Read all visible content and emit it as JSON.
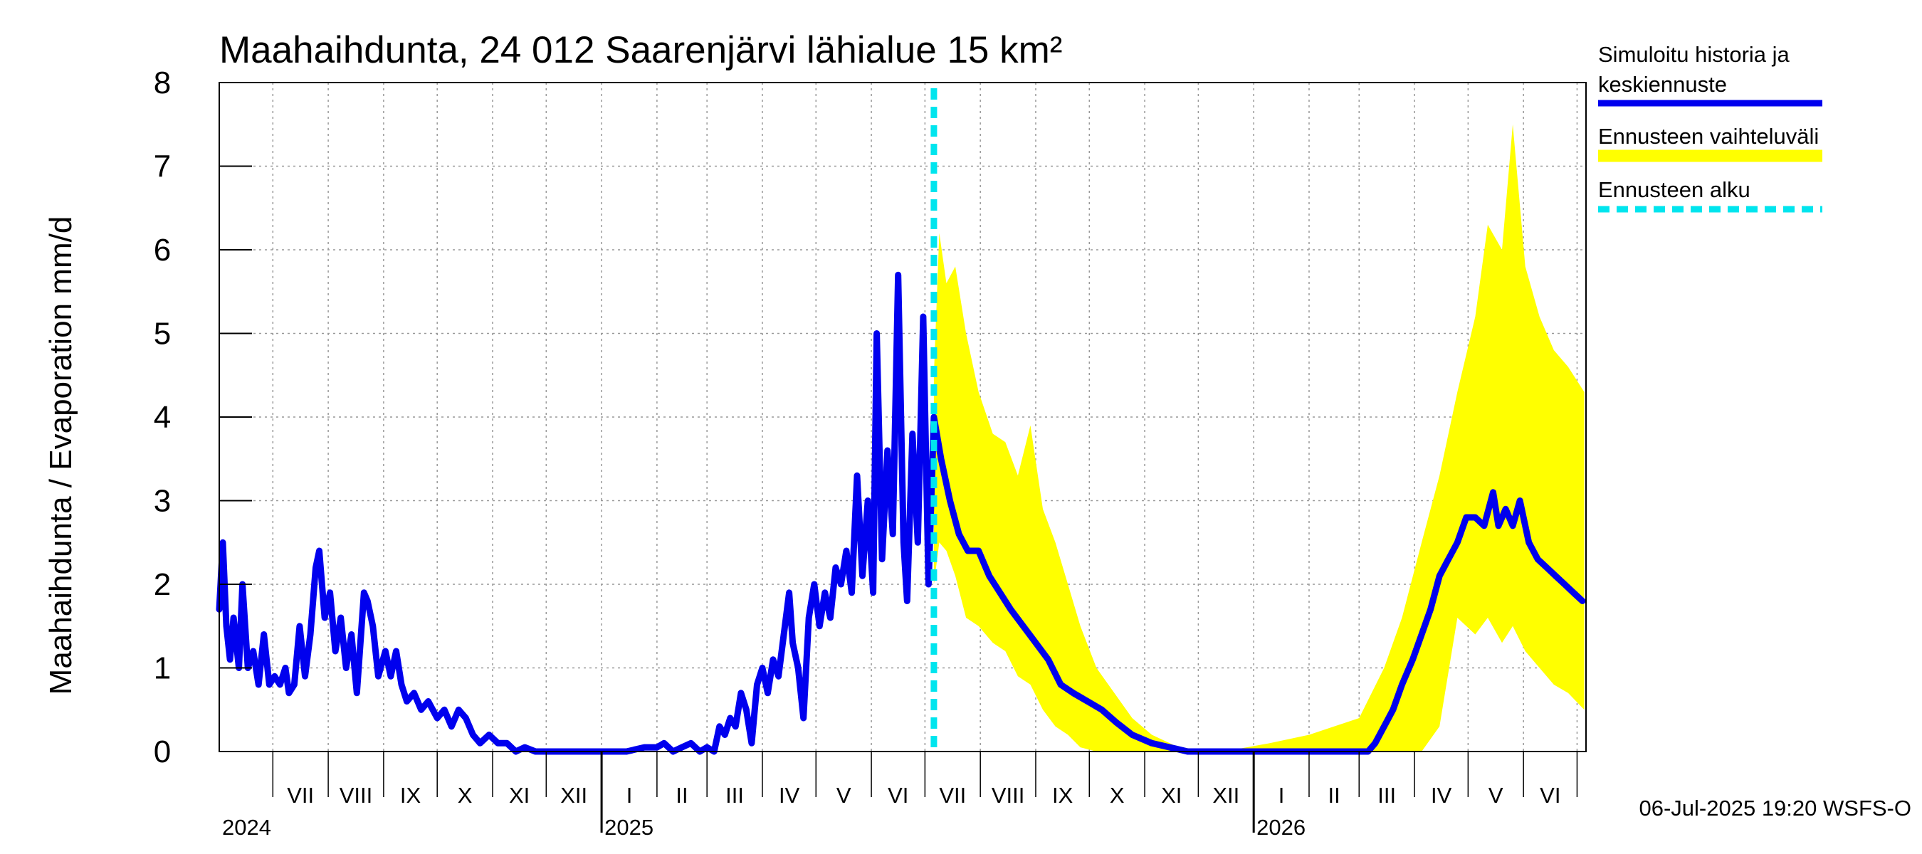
{
  "chart_data": {
    "type": "line",
    "title": "Maahaihdunta, 24 012 Saarenjärvi lähialue 15 km²",
    "ylabel": "Maahaihdunta / Evaporation   mm/d",
    "ylim": [
      0,
      8
    ],
    "yticks": [
      "0",
      "1",
      "2",
      "3",
      "4",
      "5",
      "6",
      "7",
      "8"
    ],
    "xlim": [
      "2024-06-01",
      "2026-07-06"
    ],
    "grid": true,
    "legend_position": "top-right outside",
    "months": [
      "VII",
      "VIII",
      "IX",
      "X",
      "XI",
      "XII",
      "I",
      "II",
      "III",
      "IV",
      "V",
      "VI",
      "VII",
      "VIII",
      "IX",
      "X",
      "XI",
      "XII",
      "I",
      "II",
      "III",
      "IV",
      "V",
      "VI"
    ],
    "years": [
      {
        "label": "2024",
        "date": "2024-07-01"
      },
      {
        "label": "2025",
        "date": "2025-01-01"
      },
      {
        "label": "2026",
        "date": "2026-01-01"
      }
    ],
    "forecast_start": "2025-07-06",
    "series": [
      {
        "name": "Simuloitu historia ja keskiennuste",
        "color": "#0000ee",
        "points": [
          [
            "2024-06-01",
            1.7
          ],
          [
            "2024-06-03",
            2.5
          ],
          [
            "2024-06-05",
            1.5
          ],
          [
            "2024-06-07",
            1.1
          ],
          [
            "2024-06-09",
            1.6
          ],
          [
            "2024-06-12",
            1.0
          ],
          [
            "2024-06-14",
            2.0
          ],
          [
            "2024-06-17",
            1.0
          ],
          [
            "2024-06-20",
            1.2
          ],
          [
            "2024-06-23",
            0.8
          ],
          [
            "2024-06-26",
            1.4
          ],
          [
            "2024-06-29",
            0.8
          ],
          [
            "2024-07-02",
            0.9
          ],
          [
            "2024-07-05",
            0.8
          ],
          [
            "2024-07-08",
            1.0
          ],
          [
            "2024-07-10",
            0.7
          ],
          [
            "2024-07-13",
            0.8
          ],
          [
            "2024-07-16",
            1.5
          ],
          [
            "2024-07-19",
            0.9
          ],
          [
            "2024-07-22",
            1.4
          ],
          [
            "2024-07-25",
            2.2
          ],
          [
            "2024-07-27",
            2.4
          ],
          [
            "2024-07-30",
            1.6
          ],
          [
            "2024-08-02",
            1.9
          ],
          [
            "2024-08-05",
            1.2
          ],
          [
            "2024-08-08",
            1.6
          ],
          [
            "2024-08-11",
            1.0
          ],
          [
            "2024-08-14",
            1.4
          ],
          [
            "2024-08-17",
            0.7
          ],
          [
            "2024-08-21",
            1.9
          ],
          [
            "2024-08-23",
            1.8
          ],
          [
            "2024-08-26",
            1.5
          ],
          [
            "2024-08-29",
            0.9
          ],
          [
            "2024-09-02",
            1.2
          ],
          [
            "2024-09-05",
            0.9
          ],
          [
            "2024-09-08",
            1.2
          ],
          [
            "2024-09-11",
            0.8
          ],
          [
            "2024-09-14",
            0.6
          ],
          [
            "2024-09-18",
            0.7
          ],
          [
            "2024-09-22",
            0.5
          ],
          [
            "2024-09-26",
            0.6
          ],
          [
            "2024-10-01",
            0.4
          ],
          [
            "2024-10-05",
            0.5
          ],
          [
            "2024-10-09",
            0.3
          ],
          [
            "2024-10-13",
            0.5
          ],
          [
            "2024-10-17",
            0.4
          ],
          [
            "2024-10-21",
            0.2
          ],
          [
            "2024-10-25",
            0.1
          ],
          [
            "2024-10-30",
            0.2
          ],
          [
            "2024-11-04",
            0.1
          ],
          [
            "2024-11-09",
            0.1
          ],
          [
            "2024-11-14",
            0.0
          ],
          [
            "2024-11-19",
            0.05
          ],
          [
            "2024-11-25",
            0.0
          ],
          [
            "2024-12-10",
            0.0
          ],
          [
            "2024-12-31",
            0.0
          ],
          [
            "2025-01-15",
            0.0
          ],
          [
            "2025-01-25",
            0.05
          ],
          [
            "2025-02-01",
            0.05
          ],
          [
            "2025-02-05",
            0.1
          ],
          [
            "2025-02-10",
            0.0
          ],
          [
            "2025-02-15",
            0.05
          ],
          [
            "2025-02-20",
            0.1
          ],
          [
            "2025-02-25",
            0.0
          ],
          [
            "2025-03-01",
            0.05
          ],
          [
            "2025-03-05",
            0.0
          ],
          [
            "2025-03-08",
            0.3
          ],
          [
            "2025-03-11",
            0.2
          ],
          [
            "2025-03-14",
            0.4
          ],
          [
            "2025-03-17",
            0.3
          ],
          [
            "2025-03-20",
            0.7
          ],
          [
            "2025-03-23",
            0.5
          ],
          [
            "2025-03-26",
            0.1
          ],
          [
            "2025-03-29",
            0.8
          ],
          [
            "2025-04-01",
            1.0
          ],
          [
            "2025-04-04",
            0.7
          ],
          [
            "2025-04-07",
            1.1
          ],
          [
            "2025-04-10",
            0.9
          ],
          [
            "2025-04-13",
            1.4
          ],
          [
            "2025-04-16",
            1.9
          ],
          [
            "2025-04-18",
            1.3
          ],
          [
            "2025-04-21",
            1.0
          ],
          [
            "2025-04-24",
            0.4
          ],
          [
            "2025-04-27",
            1.6
          ],
          [
            "2025-04-30",
            2.0
          ],
          [
            "2025-05-03",
            1.5
          ],
          [
            "2025-05-06",
            1.9
          ],
          [
            "2025-05-09",
            1.6
          ],
          [
            "2025-05-12",
            2.2
          ],
          [
            "2025-05-15",
            2.0
          ],
          [
            "2025-05-18",
            2.4
          ],
          [
            "2025-05-21",
            1.9
          ],
          [
            "2025-05-24",
            3.3
          ],
          [
            "2025-05-27",
            2.1
          ],
          [
            "2025-05-30",
            3.0
          ],
          [
            "2025-06-02",
            1.9
          ],
          [
            "2025-06-04",
            5.0
          ],
          [
            "2025-06-07",
            2.3
          ],
          [
            "2025-06-10",
            3.6
          ],
          [
            "2025-06-13",
            2.6
          ],
          [
            "2025-06-16",
            5.7
          ],
          [
            "2025-06-19",
            2.5
          ],
          [
            "2025-06-21",
            1.8
          ],
          [
            "2025-06-24",
            3.8
          ],
          [
            "2025-06-27",
            2.5
          ],
          [
            "2025-06-30",
            5.2
          ],
          [
            "2025-07-03",
            2.0
          ],
          [
            "2025-07-06",
            4.0
          ],
          [
            "2025-07-10",
            3.5
          ],
          [
            "2025-07-15",
            3.0
          ],
          [
            "2025-07-20",
            2.6
          ],
          [
            "2025-07-25",
            2.4
          ],
          [
            "2025-07-31",
            2.4
          ],
          [
            "2025-08-06",
            2.1
          ],
          [
            "2025-08-12",
            1.9
          ],
          [
            "2025-08-18",
            1.7
          ],
          [
            "2025-08-25",
            1.5
          ],
          [
            "2025-09-01",
            1.3
          ],
          [
            "2025-09-08",
            1.1
          ],
          [
            "2025-09-15",
            0.8
          ],
          [
            "2025-09-22",
            0.7
          ],
          [
            "2025-09-30",
            0.6
          ],
          [
            "2025-10-08",
            0.5
          ],
          [
            "2025-10-16",
            0.35
          ],
          [
            "2025-10-25",
            0.2
          ],
          [
            "2025-11-05",
            0.1
          ],
          [
            "2025-11-15",
            0.05
          ],
          [
            "2025-11-25",
            0.0
          ],
          [
            "2026-01-01",
            0.0
          ],
          [
            "2026-02-01",
            0.0
          ],
          [
            "2026-03-01",
            0.0
          ],
          [
            "2026-03-06",
            0.0
          ],
          [
            "2026-03-10",
            0.1
          ],
          [
            "2026-03-15",
            0.3
          ],
          [
            "2026-03-20",
            0.5
          ],
          [
            "2026-03-25",
            0.8
          ],
          [
            "2026-03-31",
            1.1
          ],
          [
            "2026-04-05",
            1.4
          ],
          [
            "2026-04-10",
            1.7
          ],
          [
            "2026-04-15",
            2.1
          ],
          [
            "2026-04-20",
            2.3
          ],
          [
            "2026-04-25",
            2.5
          ],
          [
            "2026-04-30",
            2.8
          ],
          [
            "2026-05-05",
            2.8
          ],
          [
            "2026-05-10",
            2.7
          ],
          [
            "2026-05-15",
            3.1
          ],
          [
            "2026-05-18",
            2.7
          ],
          [
            "2026-05-22",
            2.9
          ],
          [
            "2026-05-26",
            2.7
          ],
          [
            "2026-05-30",
            3.0
          ],
          [
            "2026-06-04",
            2.5
          ],
          [
            "2026-06-09",
            2.3
          ],
          [
            "2026-06-14",
            2.2
          ],
          [
            "2026-06-19",
            2.1
          ],
          [
            "2026-06-24",
            2.0
          ],
          [
            "2026-06-29",
            1.9
          ],
          [
            "2026-07-04",
            1.8
          ]
        ]
      },
      {
        "name": "Ennusteen vaihteluväli",
        "color": "#ffff00",
        "points": [
          [
            "2025-07-06",
            2.0,
            4.5
          ],
          [
            "2025-07-09",
            2.5,
            6.2
          ],
          [
            "2025-07-13",
            2.4,
            5.6
          ],
          [
            "2025-07-18",
            2.1,
            5.8
          ],
          [
            "2025-07-24",
            1.6,
            5.0
          ],
          [
            "2025-07-31",
            1.5,
            4.3
          ],
          [
            "2025-08-08",
            1.3,
            3.8
          ],
          [
            "2025-08-15",
            1.2,
            3.7
          ],
          [
            "2025-08-22",
            0.9,
            3.3
          ],
          [
            "2025-08-29",
            0.8,
            3.9
          ],
          [
            "2025-09-05",
            0.5,
            2.9
          ],
          [
            "2025-09-12",
            0.3,
            2.5
          ],
          [
            "2025-09-19",
            0.2,
            2.0
          ],
          [
            "2025-09-26",
            0.05,
            1.5
          ],
          [
            "2025-10-05",
            0.0,
            1.0
          ],
          [
            "2025-10-15",
            0.0,
            0.7
          ],
          [
            "2025-10-25",
            0.0,
            0.4
          ],
          [
            "2025-11-05",
            0.0,
            0.2
          ],
          [
            "2025-11-20",
            0.0,
            0.05
          ],
          [
            "2025-12-15",
            0.0,
            0.0
          ],
          [
            "2026-01-10",
            0.0,
            0.1
          ],
          [
            "2026-02-01",
            0.0,
            0.2
          ],
          [
            "2026-02-15",
            0.0,
            0.3
          ],
          [
            "2026-03-01",
            0.0,
            0.4
          ],
          [
            "2026-03-15",
            0.0,
            1.0
          ],
          [
            "2026-03-25",
            0.0,
            1.6
          ],
          [
            "2026-04-05",
            0.0,
            2.5
          ],
          [
            "2026-04-15",
            0.3,
            3.3
          ],
          [
            "2026-04-25",
            1.6,
            4.3
          ],
          [
            "2026-05-05",
            1.4,
            5.2
          ],
          [
            "2026-05-12",
            1.6,
            6.3
          ],
          [
            "2026-05-20",
            1.3,
            6.0
          ],
          [
            "2026-05-26",
            1.5,
            7.5
          ],
          [
            "2026-06-02",
            1.2,
            5.8
          ],
          [
            "2026-06-10",
            1.0,
            5.2
          ],
          [
            "2026-06-18",
            0.8,
            4.8
          ],
          [
            "2026-06-26",
            0.7,
            4.6
          ],
          [
            "2026-07-05",
            0.5,
            4.3
          ]
        ]
      }
    ]
  },
  "legend": [
    {
      "label": "Simuloitu historia ja",
      "label2": "keskiennuste",
      "color": "#0000ee",
      "style": "solid"
    },
    {
      "label": "Ennusteen vaihteluväli",
      "color": "#ffff00",
      "style": "solid"
    },
    {
      "label": "Ennusteen alku",
      "color": "#00e5ee",
      "style": "dashed"
    }
  ],
  "footer": "06-Jul-2025 19:20 WSFS-O"
}
